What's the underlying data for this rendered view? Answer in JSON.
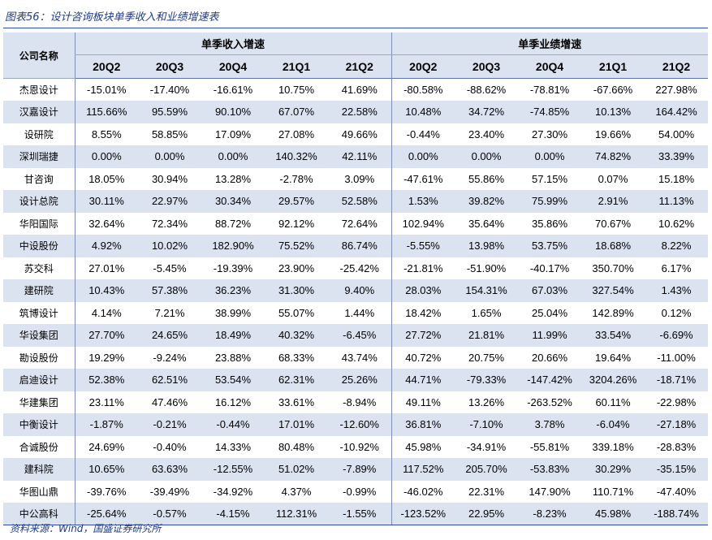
{
  "figure_title": "图表56：设计咨询板块单季收入和业绩增速表",
  "table": {
    "corner_header": "公司名称",
    "group_headers": [
      "单季收入增速",
      "单季业绩增速"
    ],
    "quarters": [
      "20Q2",
      "20Q3",
      "20Q4",
      "21Q1",
      "21Q2"
    ],
    "rows": [
      {
        "name": "杰恩设计",
        "revenue": [
          "-15.01%",
          "-17.40%",
          "-16.61%",
          "10.75%",
          "41.69%"
        ],
        "profit": [
          "-80.58%",
          "-88.62%",
          "-78.81%",
          "-67.66%",
          "227.98%"
        ]
      },
      {
        "name": "汉嘉设计",
        "revenue": [
          "115.66%",
          "95.59%",
          "90.10%",
          "67.07%",
          "22.58%"
        ],
        "profit": [
          "10.48%",
          "34.72%",
          "-74.85%",
          "10.13%",
          "164.42%"
        ]
      },
      {
        "name": "设研院",
        "revenue": [
          "8.55%",
          "58.85%",
          "17.09%",
          "27.08%",
          "49.66%"
        ],
        "profit": [
          "-0.44%",
          "23.40%",
          "27.30%",
          "19.66%",
          "54.00%"
        ]
      },
      {
        "name": "深圳瑞捷",
        "revenue": [
          "0.00%",
          "0.00%",
          "0.00%",
          "140.32%",
          "42.11%"
        ],
        "profit": [
          "0.00%",
          "0.00%",
          "0.00%",
          "74.82%",
          "33.39%"
        ]
      },
      {
        "name": "甘咨询",
        "revenue": [
          "18.05%",
          "30.94%",
          "13.28%",
          "-2.78%",
          "3.09%"
        ],
        "profit": [
          "-47.61%",
          "55.86%",
          "57.15%",
          "0.07%",
          "15.18%"
        ]
      },
      {
        "name": "设计总院",
        "revenue": [
          "30.11%",
          "22.97%",
          "30.34%",
          "29.57%",
          "52.58%"
        ],
        "profit": [
          "1.53%",
          "39.82%",
          "75.99%",
          "2.91%",
          "11.13%"
        ]
      },
      {
        "name": "华阳国际",
        "revenue": [
          "32.64%",
          "72.34%",
          "88.72%",
          "92.12%",
          "72.64%"
        ],
        "profit": [
          "102.94%",
          "35.64%",
          "35.86%",
          "70.67%",
          "10.62%"
        ]
      },
      {
        "name": "中设股份",
        "revenue": [
          "4.92%",
          "10.02%",
          "182.90%",
          "75.52%",
          "86.74%"
        ],
        "profit": [
          "-5.55%",
          "13.98%",
          "53.75%",
          "18.68%",
          "8.22%"
        ]
      },
      {
        "name": "苏交科",
        "revenue": [
          "27.01%",
          "-5.45%",
          "-19.39%",
          "23.90%",
          "-25.42%"
        ],
        "profit": [
          "-21.81%",
          "-51.90%",
          "-40.17%",
          "350.70%",
          "6.17%"
        ]
      },
      {
        "name": "建研院",
        "revenue": [
          "10.43%",
          "57.38%",
          "36.23%",
          "31.30%",
          "9.40%"
        ],
        "profit": [
          "28.03%",
          "154.31%",
          "67.03%",
          "327.54%",
          "1.43%"
        ]
      },
      {
        "name": "筑博设计",
        "revenue": [
          "4.14%",
          "7.21%",
          "38.99%",
          "55.07%",
          "1.44%"
        ],
        "profit": [
          "18.42%",
          "1.65%",
          "25.04%",
          "142.89%",
          "0.12%"
        ]
      },
      {
        "name": "华设集团",
        "revenue": [
          "27.70%",
          "24.65%",
          "18.49%",
          "40.32%",
          "-6.45%"
        ],
        "profit": [
          "27.72%",
          "21.81%",
          "11.99%",
          "33.54%",
          "-6.69%"
        ]
      },
      {
        "name": "勘设股份",
        "revenue": [
          "19.29%",
          "-9.24%",
          "23.88%",
          "68.33%",
          "43.74%"
        ],
        "profit": [
          "40.72%",
          "20.75%",
          "20.66%",
          "19.64%",
          "-11.00%"
        ]
      },
      {
        "name": "启迪设计",
        "revenue": [
          "52.38%",
          "62.51%",
          "53.54%",
          "62.31%",
          "25.26%"
        ],
        "profit": [
          "44.71%",
          "-79.33%",
          "-147.42%",
          "3204.26%",
          "-18.71%"
        ]
      },
      {
        "name": "华建集团",
        "revenue": [
          "23.11%",
          "47.46%",
          "16.12%",
          "33.61%",
          "-8.94%"
        ],
        "profit": [
          "49.11%",
          "13.26%",
          "-263.52%",
          "60.11%",
          "-22.98%"
        ]
      },
      {
        "name": "中衡设计",
        "revenue": [
          "-1.87%",
          "-0.21%",
          "-0.44%",
          "17.01%",
          "-12.60%"
        ],
        "profit": [
          "36.81%",
          "-7.10%",
          "3.78%",
          "-6.04%",
          "-27.18%"
        ]
      },
      {
        "name": "合诚股份",
        "revenue": [
          "24.69%",
          "-0.40%",
          "14.33%",
          "80.48%",
          "-10.92%"
        ],
        "profit": [
          "45.98%",
          "-34.91%",
          "-55.81%",
          "339.18%",
          "-28.83%"
        ]
      },
      {
        "name": "建科院",
        "revenue": [
          "10.65%",
          "63.63%",
          "-12.55%",
          "51.02%",
          "-7.89%"
        ],
        "profit": [
          "117.52%",
          "205.70%",
          "-53.83%",
          "30.29%",
          "-35.15%"
        ]
      },
      {
        "name": "华图山鼎",
        "revenue": [
          "-39.76%",
          "-39.49%",
          "-34.92%",
          "4.37%",
          "-0.99%"
        ],
        "profit": [
          "-46.02%",
          "22.31%",
          "147.90%",
          "110.71%",
          "-47.40%"
        ]
      },
      {
        "name": "中公高科",
        "revenue": [
          "-25.64%",
          "-0.57%",
          "-4.15%",
          "112.31%",
          "-1.55%"
        ],
        "profit": [
          "-123.52%",
          "22.95%",
          "-8.23%",
          "45.98%",
          "-188.74%"
        ]
      }
    ]
  },
  "source_note": "资料来源：Wind，国盛证券研究所",
  "colors": {
    "header_fill": "#dbe3f1",
    "title_text": "#1f3b87",
    "rule": "#2b4fa6"
  }
}
